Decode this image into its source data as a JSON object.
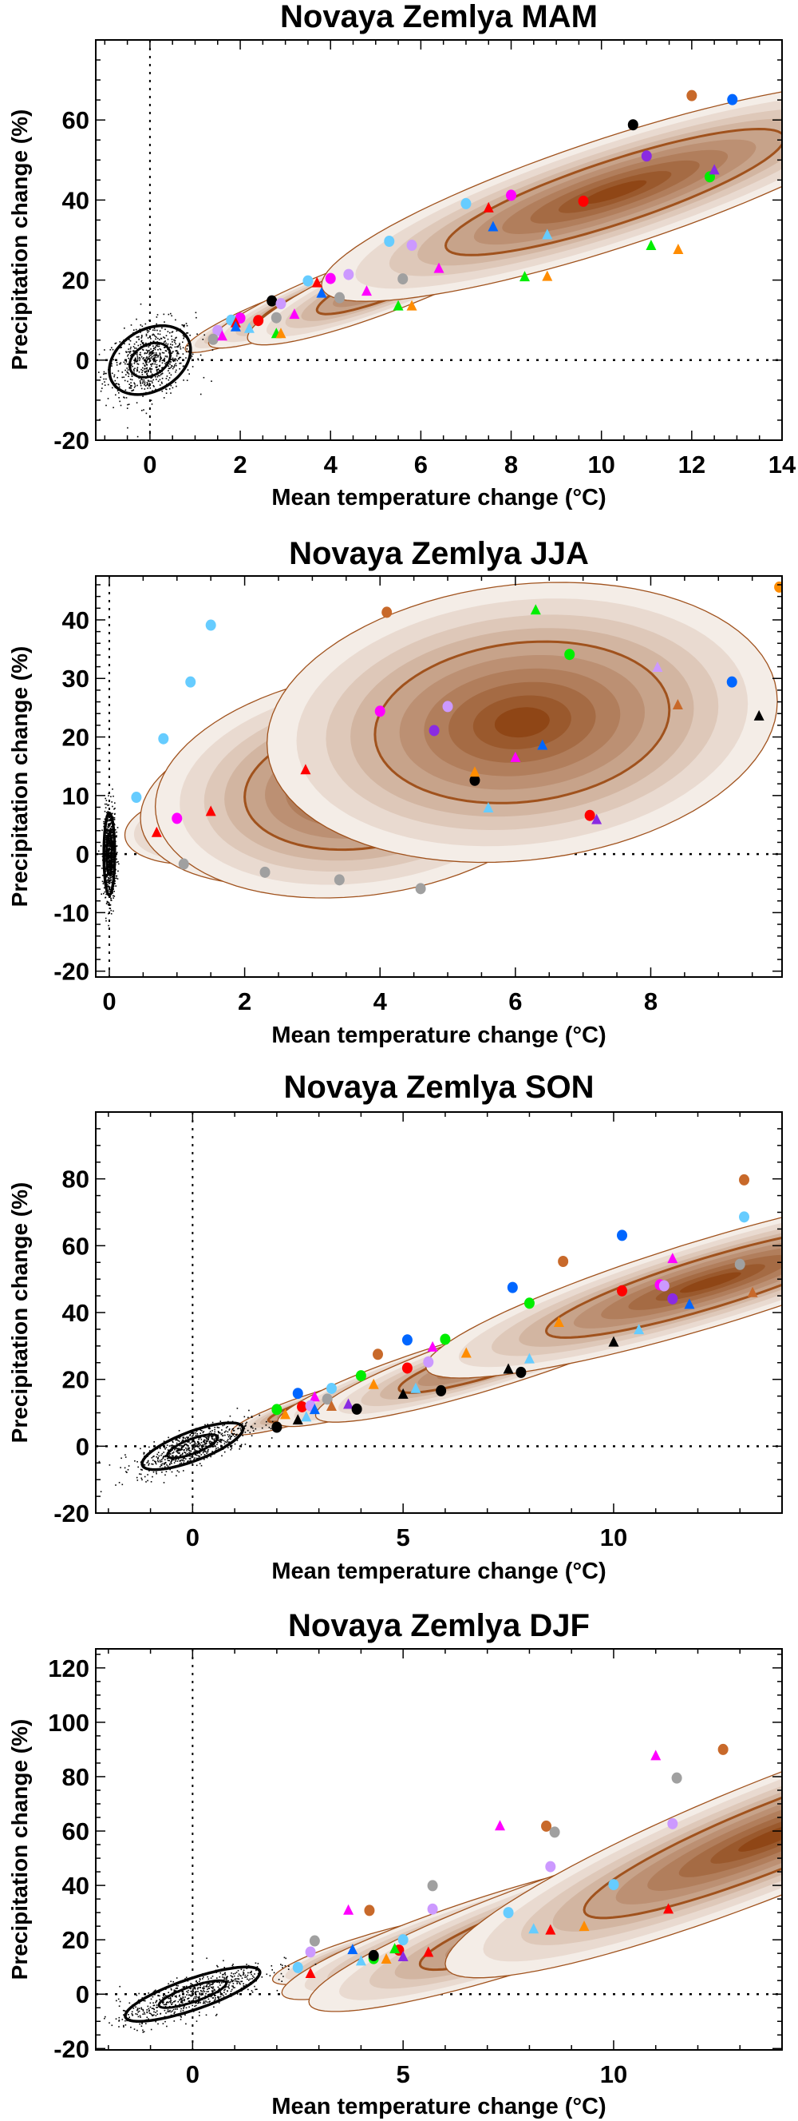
{
  "colors": {
    "brown": "#c8692a",
    "blue": "#0066ff",
    "black": "#000000",
    "purple": "#8a2be2",
    "green": "#00ee00",
    "red": "#ff0000",
    "magenta": "#ff00ff",
    "lightblue": "#66ccff",
    "lavender": "#cc99ff",
    "gray": "#a0a0a0",
    "orange": "#ff8c00",
    "shade_outer": "#f4ede7",
    "shade_inner": "#8f4616",
    "contour": "#a0521d"
  },
  "chart_data": [
    {
      "type": "scatter",
      "title": "Novaya Zemlya MAM",
      "xlabel": "Mean temperature change (°C)",
      "ylabel": "Precipitation change (%)",
      "xlim": [
        -1.2,
        14
      ],
      "ylim": [
        -20,
        80
      ],
      "xticks": [
        0,
        2,
        4,
        6,
        8,
        10,
        12,
        14
      ],
      "xminor": 0.5,
      "yticks": [
        -20,
        0,
        20,
        40,
        60
      ],
      "yminor": 5,
      "observed": {
        "cx": 0,
        "cy": 0,
        "sx": 0.45,
        "sy": 4.3,
        "rho": 0.3
      },
      "distributions": [
        {
          "cx": 2.6,
          "cy": 11,
          "sx": 0.7,
          "sy": 3.5,
          "rho": 0.9
        },
        {
          "cx": 3.9,
          "cy": 16,
          "sx": 1.0,
          "sy": 5,
          "rho": 0.9
        },
        {
          "cx": 5.8,
          "cy": 22,
          "sx": 1.4,
          "sy": 7,
          "rho": 0.9
        },
        {
          "cx": 10.3,
          "cy": 42,
          "sx": 2.5,
          "sy": 10.5,
          "rho": 0.85
        }
      ],
      "points": [
        [
          12.0,
          66.1,
          "brown",
          "circle"
        ],
        [
          12.9,
          65.1,
          "blue",
          "circle"
        ],
        [
          10.7,
          58.8,
          "black",
          "circle"
        ],
        [
          11.0,
          51.0,
          "purple",
          "circle"
        ],
        [
          12.4,
          45.8,
          "green",
          "circle"
        ],
        [
          12.5,
          47.4,
          "purple",
          "triangle"
        ],
        [
          9.6,
          39.7,
          "red",
          "circle"
        ],
        [
          8.0,
          41.2,
          "magenta",
          "circle"
        ],
        [
          7.0,
          39.1,
          "lightblue",
          "circle"
        ],
        [
          7.5,
          37.9,
          "red",
          "triangle"
        ],
        [
          7.6,
          33.2,
          "blue",
          "triangle"
        ],
        [
          8.8,
          31.2,
          "lightblue",
          "triangle"
        ],
        [
          11.1,
          28.5,
          "green",
          "triangle"
        ],
        [
          11.7,
          27.5,
          "orange",
          "triangle"
        ],
        [
          5.3,
          29.7,
          "lightblue",
          "circle"
        ],
        [
          5.8,
          28.7,
          "lavender",
          "circle"
        ],
        [
          6.4,
          22.8,
          "magenta",
          "triangle"
        ],
        [
          5.6,
          20.3,
          "gray",
          "circle"
        ],
        [
          8.3,
          20.7,
          "green",
          "triangle"
        ],
        [
          8.8,
          20.8,
          "orange",
          "triangle"
        ],
        [
          4.4,
          21.4,
          "lavender",
          "circle"
        ],
        [
          4.0,
          20.4,
          "magenta",
          "circle"
        ],
        [
          3.5,
          19.8,
          "lightblue",
          "circle"
        ],
        [
          3.7,
          19.2,
          "red",
          "triangle"
        ],
        [
          3.8,
          16.6,
          "blue",
          "triangle"
        ],
        [
          4.2,
          15.6,
          "gray",
          "circle"
        ],
        [
          4.8,
          17.1,
          "magenta",
          "triangle"
        ],
        [
          5.5,
          13.4,
          "green",
          "triangle"
        ],
        [
          5.8,
          13.4,
          "orange",
          "triangle"
        ],
        [
          2.7,
          14.8,
          "black",
          "circle"
        ],
        [
          2.9,
          14.1,
          "lavender",
          "circle"
        ],
        [
          2.8,
          10.6,
          "gray",
          "circle"
        ],
        [
          3.2,
          11.3,
          "magenta",
          "triangle"
        ],
        [
          2.4,
          9.9,
          "red",
          "circle"
        ],
        [
          2.0,
          10.5,
          "magenta",
          "circle"
        ],
        [
          1.8,
          10.0,
          "lightblue",
          "circle"
        ],
        [
          1.9,
          9.2,
          "red",
          "triangle"
        ],
        [
          1.9,
          8.2,
          "blue",
          "triangle"
        ],
        [
          2.2,
          7.8,
          "lightblue",
          "triangle"
        ],
        [
          2.8,
          6.5,
          "green",
          "triangle"
        ],
        [
          2.9,
          6.5,
          "orange",
          "triangle"
        ],
        [
          1.5,
          7.4,
          "lavender",
          "circle"
        ],
        [
          1.4,
          5.2,
          "gray",
          "circle"
        ],
        [
          1.6,
          5.9,
          "magenta",
          "triangle"
        ]
      ]
    },
    {
      "type": "scatter",
      "title": "Novaya Zemlya JJA",
      "xlabel": "Mean temperature change (°C)",
      "ylabel": "Precipitation change (%)",
      "xlim": [
        -0.2,
        9.94
      ],
      "ylim": [
        -21,
        47.5
      ],
      "xticks": [
        0,
        2,
        4,
        6,
        8
      ],
      "xminor": 0.5,
      "yticks": [
        -20,
        -10,
        0,
        10,
        20,
        30,
        40
      ],
      "yminor": 2,
      "observed": {
        "cx": 0,
        "cy": 0,
        "sx": 0.04,
        "sy": 3.5,
        "rho": 0
      },
      "distributions": [
        {
          "cx": 1.4,
          "cy": 4.5,
          "sx": 0.45,
          "sy": 2.4,
          "rho": 0.2
        },
        {
          "cx": 2.8,
          "cy": 9,
          "sx": 0.9,
          "sy": 5.5,
          "rho": 0.2
        },
        {
          "cx": 3.8,
          "cy": 12,
          "sx": 1.2,
          "sy": 7.5,
          "rho": 0.2
        },
        {
          "cx": 6.1,
          "cy": 22.5,
          "sx": 1.45,
          "sy": 9.2,
          "rho": 0.15
        }
      ],
      "points": [
        [
          9.9,
          45.6,
          "orange",
          "circle"
        ],
        [
          4.1,
          41.3,
          "brown",
          "circle"
        ],
        [
          6.3,
          41.6,
          "green",
          "triangle"
        ],
        [
          1.5,
          39.1,
          "lightblue",
          "circle"
        ],
        [
          6.8,
          34.1,
          "green",
          "circle"
        ],
        [
          8.1,
          31.8,
          "lavender",
          "triangle"
        ],
        [
          9.2,
          29.4,
          "blue",
          "circle"
        ],
        [
          1.2,
          29.4,
          "lightblue",
          "circle"
        ],
        [
          8.4,
          25.4,
          "brown",
          "triangle"
        ],
        [
          9.6,
          23.5,
          "black",
          "triangle"
        ],
        [
          4.0,
          24.4,
          "magenta",
          "circle"
        ],
        [
          5.0,
          25.2,
          "lavender",
          "circle"
        ],
        [
          4.8,
          21.1,
          "purple",
          "circle"
        ],
        [
          6.4,
          18.5,
          "blue",
          "triangle"
        ],
        [
          0.8,
          19.7,
          "lightblue",
          "circle"
        ],
        [
          6.0,
          16.4,
          "magenta",
          "triangle"
        ],
        [
          2.9,
          14.3,
          "red",
          "triangle"
        ],
        [
          5.4,
          12.6,
          "black",
          "circle"
        ],
        [
          5.4,
          13.9,
          "orange",
          "triangle"
        ],
        [
          0.4,
          9.7,
          "lightblue",
          "circle"
        ],
        [
          5.6,
          7.8,
          "lightblue",
          "triangle"
        ],
        [
          7.1,
          6.6,
          "red",
          "circle"
        ],
        [
          7.2,
          5.8,
          "purple",
          "triangle"
        ],
        [
          1.5,
          7.2,
          "red",
          "triangle"
        ],
        [
          1.0,
          6.1,
          "magenta",
          "circle"
        ],
        [
          0.7,
          3.6,
          "red",
          "triangle"
        ],
        [
          1.1,
          -1.7,
          "gray",
          "circle"
        ],
        [
          2.3,
          -3.1,
          "gray",
          "circle"
        ],
        [
          3.4,
          -4.4,
          "gray",
          "circle"
        ],
        [
          4.6,
          -5.9,
          "gray",
          "circle"
        ]
      ]
    },
    {
      "type": "scatter",
      "title": "Novaya Zemlya SON",
      "xlabel": "Mean temperature change (°C)",
      "ylabel": "Precipitation change (%)",
      "xlim": [
        -2.3,
        14
      ],
      "ylim": [
        -20,
        100
      ],
      "xticks": [
        0,
        5,
        10
      ],
      "xminor": 1,
      "yticks": [
        -20,
        0,
        20,
        40,
        60,
        80
      ],
      "yminor": 5,
      "observed": {
        "cx": 0,
        "cy": 0,
        "sx": 0.6,
        "sy": 3.5,
        "rho": 0.75
      },
      "distributions": [
        {
          "cx": 3.0,
          "cy": 12.5,
          "sx": 0.8,
          "sy": 3.5,
          "rho": 0.9
        },
        {
          "cx": 5.4,
          "cy": 21.5,
          "sx": 1.3,
          "sy": 6,
          "rho": 0.9
        },
        {
          "cx": 7.6,
          "cy": 28,
          "sx": 1.8,
          "sy": 8,
          "rho": 0.9
        },
        {
          "cx": 12.3,
          "cy": 49,
          "sx": 2.6,
          "sy": 11,
          "rho": 0.88
        }
      ],
      "points": [
        [
          13.1,
          79.7,
          "brown",
          "circle"
        ],
        [
          13.1,
          68.6,
          "lightblue",
          "circle"
        ],
        [
          10.2,
          63.1,
          "blue",
          "circle"
        ],
        [
          8.8,
          55.3,
          "brown",
          "circle"
        ],
        [
          11.4,
          56.0,
          "magenta",
          "triangle"
        ],
        [
          13.0,
          54.4,
          "gray",
          "circle"
        ],
        [
          11.1,
          48.3,
          "magenta",
          "circle"
        ],
        [
          11.2,
          48.0,
          "lavender",
          "circle"
        ],
        [
          10.2,
          46.5,
          "red",
          "circle"
        ],
        [
          11.4,
          44.1,
          "purple",
          "circle"
        ],
        [
          13.3,
          45.8,
          "brown",
          "triangle"
        ],
        [
          11.8,
          42.3,
          "blue",
          "triangle"
        ],
        [
          7.6,
          47.5,
          "blue",
          "circle"
        ],
        [
          8.0,
          42.8,
          "green",
          "circle"
        ],
        [
          8.7,
          36.9,
          "orange",
          "triangle"
        ],
        [
          10.6,
          34.7,
          "lightblue",
          "triangle"
        ],
        [
          10.0,
          31.0,
          "black",
          "triangle"
        ],
        [
          5.1,
          31.8,
          "blue",
          "circle"
        ],
        [
          6.0,
          32.0,
          "green",
          "circle"
        ],
        [
          5.7,
          29.5,
          "magenta",
          "triangle"
        ],
        [
          6.5,
          27.7,
          "orange",
          "triangle"
        ],
        [
          8.0,
          26.0,
          "lightblue",
          "triangle"
        ],
        [
          4.4,
          27.5,
          "brown",
          "circle"
        ],
        [
          5.1,
          23.4,
          "red",
          "circle"
        ],
        [
          5.6,
          25.2,
          "lavender",
          "circle"
        ],
        [
          7.5,
          22.9,
          "black",
          "triangle"
        ],
        [
          7.8,
          22.1,
          "black",
          "circle"
        ],
        [
          4.0,
          21.1,
          "green",
          "circle"
        ],
        [
          4.3,
          18.3,
          "orange",
          "triangle"
        ],
        [
          5.3,
          17.1,
          "lightblue",
          "triangle"
        ],
        [
          5.9,
          16.6,
          "black",
          "circle"
        ],
        [
          5.0,
          15.4,
          "black",
          "triangle"
        ],
        [
          2.5,
          15.8,
          "blue",
          "circle"
        ],
        [
          3.3,
          17.3,
          "lightblue",
          "circle"
        ],
        [
          2.9,
          14.6,
          "magenta",
          "triangle"
        ],
        [
          3.2,
          14.1,
          "gray",
          "circle"
        ],
        [
          2.6,
          11.8,
          "red",
          "circle"
        ],
        [
          2.8,
          12.1,
          "lavender",
          "circle"
        ],
        [
          3.3,
          11.8,
          "brown",
          "triangle"
        ],
        [
          3.7,
          12.4,
          "purple",
          "triangle"
        ],
        [
          3.9,
          11.1,
          "black",
          "circle"
        ],
        [
          2.9,
          10.8,
          "blue",
          "triangle"
        ],
        [
          2.0,
          11.0,
          "green",
          "circle"
        ],
        [
          2.2,
          9.3,
          "orange",
          "triangle"
        ],
        [
          2.7,
          8.6,
          "lightblue",
          "triangle"
        ],
        [
          2.5,
          7.7,
          "black",
          "triangle"
        ],
        [
          2.0,
          5.7,
          "black",
          "circle"
        ]
      ]
    },
    {
      "type": "scatter",
      "title": "Novaya Zemlya DJF",
      "xlabel": "Mean temperature change (°C)",
      "ylabel": "Precipitation change (%)",
      "xlim": [
        -2.3,
        14
      ],
      "ylim": [
        -20.5,
        127
      ],
      "xticks": [
        0,
        5,
        10
      ],
      "xminor": 1,
      "yticks": [
        -20,
        0,
        20,
        40,
        60,
        80,
        100,
        120
      ],
      "yminor": 5,
      "observed": {
        "cx": 0,
        "cy": 0,
        "sx": 0.8,
        "sy": 5,
        "rho": 0.8
      },
      "distributions": [
        {
          "cx": 4.5,
          "cy": 16.5,
          "sx": 1.0,
          "sy": 5,
          "rho": 0.85
        },
        {
          "cx": 6.8,
          "cy": 24,
          "sx": 1.8,
          "sy": 10,
          "rho": 0.9
        },
        {
          "cx": 9.0,
          "cy": 30,
          "sx": 2.4,
          "sy": 14,
          "rho": 0.9
        },
        {
          "cx": 13.8,
          "cy": 58,
          "sx": 3.0,
          "sy": 20,
          "rho": 0.9
        }
      ],
      "points": [
        [
          12.6,
          90.0,
          "brown",
          "circle"
        ],
        [
          11.0,
          87.5,
          "magenta",
          "triangle"
        ],
        [
          11.5,
          79.5,
          "gray",
          "circle"
        ],
        [
          11.4,
          62.7,
          "lavender",
          "circle"
        ],
        [
          7.3,
          61.7,
          "magenta",
          "triangle"
        ],
        [
          8.4,
          61.8,
          "brown",
          "circle"
        ],
        [
          8.6,
          59.6,
          "gray",
          "circle"
        ],
        [
          8.5,
          46.9,
          "lavender",
          "circle"
        ],
        [
          10.0,
          40.3,
          "lightblue",
          "circle"
        ],
        [
          5.7,
          39.9,
          "gray",
          "circle"
        ],
        [
          5.7,
          31.3,
          "lavender",
          "circle"
        ],
        [
          7.5,
          30.0,
          "lightblue",
          "circle"
        ],
        [
          11.3,
          31.1,
          "red",
          "triangle"
        ],
        [
          8.1,
          23.8,
          "lightblue",
          "triangle"
        ],
        [
          8.5,
          23.4,
          "red",
          "triangle"
        ],
        [
          9.3,
          24.7,
          "orange",
          "triangle"
        ],
        [
          3.7,
          30.7,
          "magenta",
          "triangle"
        ],
        [
          4.2,
          30.8,
          "brown",
          "circle"
        ],
        [
          2.9,
          19.6,
          "gray",
          "circle"
        ],
        [
          5.0,
          20.0,
          "lightblue",
          "circle"
        ],
        [
          2.8,
          15.5,
          "lavender",
          "circle"
        ],
        [
          3.8,
          16.2,
          "blue",
          "triangle"
        ],
        [
          4.9,
          16.2,
          "red",
          "circle"
        ],
        [
          4.8,
          16.5,
          "green",
          "triangle"
        ],
        [
          5.6,
          15.2,
          "red",
          "triangle"
        ],
        [
          4.3,
          13.1,
          "green",
          "circle"
        ],
        [
          4.3,
          14.2,
          "black",
          "circle"
        ],
        [
          4.0,
          12.0,
          "lightblue",
          "triangle"
        ],
        [
          4.6,
          12.7,
          "orange",
          "triangle"
        ],
        [
          5.0,
          13.6,
          "purple",
          "triangle"
        ],
        [
          2.5,
          9.8,
          "lightblue",
          "circle"
        ],
        [
          2.8,
          7.4,
          "red",
          "triangle"
        ]
      ]
    }
  ]
}
